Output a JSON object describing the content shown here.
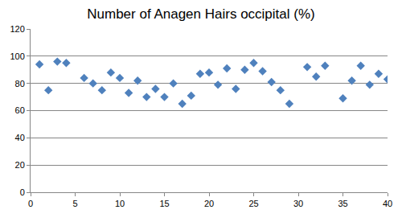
{
  "chart_data": {
    "type": "scatter",
    "title": "Number of Anagen Hairs occipital (%)",
    "x": [
      1,
      2,
      3,
      4,
      6,
      7,
      8,
      9,
      10,
      11,
      12,
      13,
      14,
      15,
      16,
      17,
      18,
      19,
      20,
      21,
      22,
      23,
      24,
      25,
      26,
      27,
      28,
      29,
      31,
      32,
      33,
      35,
      36,
      37,
      38,
      39,
      40
    ],
    "values": [
      94,
      75,
      96,
      95,
      84,
      80,
      75,
      88,
      84,
      73,
      82,
      70,
      76,
      70,
      80,
      65,
      71,
      87,
      88,
      79,
      91,
      76,
      90,
      95,
      89,
      81,
      75,
      65,
      92,
      85,
      93,
      69,
      82,
      93,
      79,
      87,
      83
    ],
    "color": "#4f81bd",
    "marker": "diamond",
    "xlim": [
      0,
      40
    ],
    "xticks": [
      0,
      5,
      10,
      15,
      20,
      25,
      30,
      35,
      40
    ],
    "ylim": [
      0,
      120
    ],
    "yticks": [
      0,
      20,
      40,
      60,
      80,
      100,
      120
    ],
    "grid": true
  }
}
